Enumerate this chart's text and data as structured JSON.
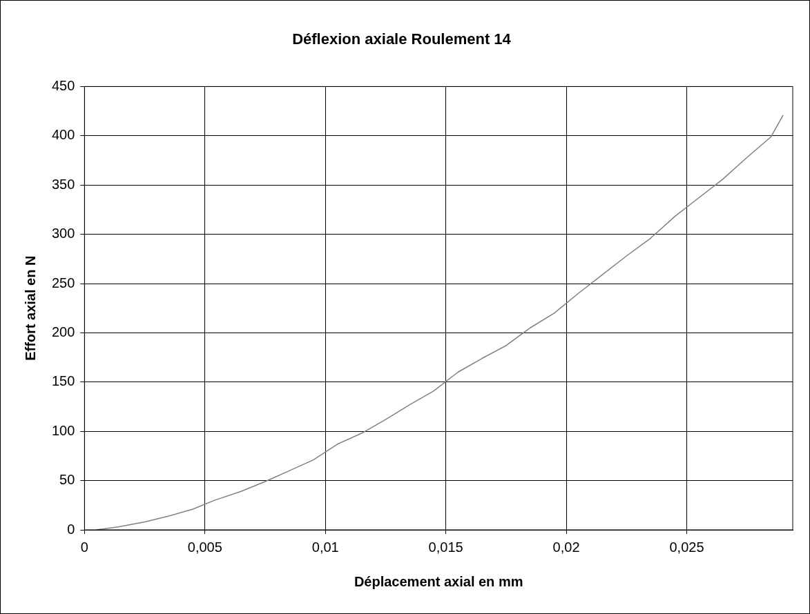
{
  "chart_data": {
    "type": "line",
    "title": "Déflexion axiale Roulement 14",
    "xlabel": "Déplacement axial en mm",
    "ylabel": "Effort axial en N",
    "x": [
      0.0005,
      0.0014,
      0.0025,
      0.0035,
      0.0045,
      0.0054,
      0.0065,
      0.0075,
      0.0085,
      0.0095,
      0.0105,
      0.0115,
      0.0125,
      0.0135,
      0.0145,
      0.0155,
      0.0165,
      0.0175,
      0.0185,
      0.0195,
      0.0205,
      0.0215,
      0.0225,
      0.0235,
      0.0245,
      0.0255,
      0.0265,
      0.0275,
      0.0285,
      0.029
    ],
    "series": [
      {
        "color": "#808080",
        "values": [
          0,
          3,
          8,
          14,
          21,
          30,
          39,
          49,
          60,
          71,
          87,
          98,
          112,
          127,
          141,
          160,
          174,
          187,
          205,
          220,
          240,
          259,
          278,
          296,
          318,
          337,
          356,
          378,
          399,
          421
        ]
      }
    ],
    "xlim": [
      0,
      0.0294
    ],
    "xticks": [
      0,
      {
        "value": 0.005,
        "label": "0,005"
      },
      {
        "value": 0.01,
        "label": "0,01"
      },
      {
        "value": 0.015,
        "label": "0,015"
      },
      {
        "value": 0.02,
        "label": "0,02"
      },
      {
        "value": 0.025,
        "label": "0,025"
      }
    ],
    "ylim": [
      0,
      450
    ],
    "yticks": [
      0,
      50,
      100,
      150,
      200,
      250,
      300,
      350,
      400,
      450
    ],
    "grid": true,
    "legend": false,
    "marker": "none",
    "line_style": "solid"
  }
}
